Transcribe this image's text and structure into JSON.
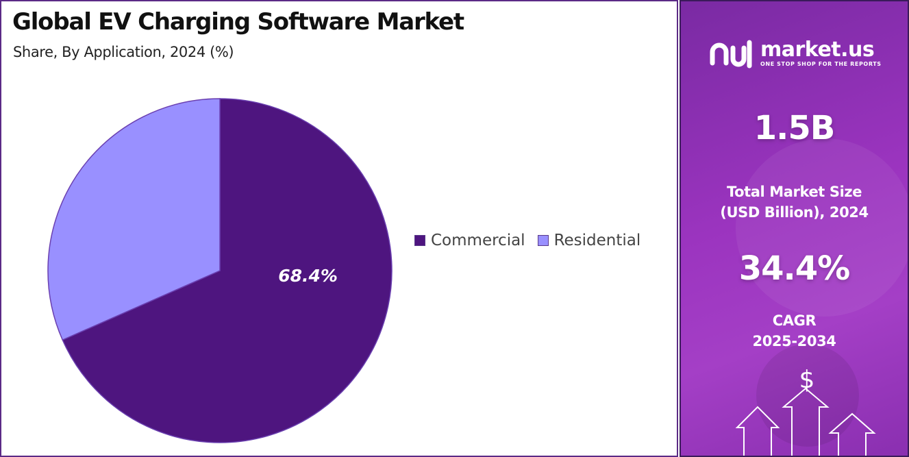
{
  "chart_data": {
    "type": "pie",
    "title": "Global EV Charging Software Market",
    "subtitle": "Share, By Application, 2024 (%)",
    "categories": [
      "Commercial",
      "Residential"
    ],
    "values": [
      68.4,
      31.6
    ],
    "labels": [
      "68.4%",
      ""
    ],
    "colors": [
      "#4e157f",
      "#9990ff"
    ],
    "legend_position": "right"
  },
  "sidebar": {
    "brand_name": "market.us",
    "brand_tagline": "ONE STOP SHOP FOR THE REPORTS",
    "market_size_value": "1.5B",
    "market_size_label_line1": "Total Market Size",
    "market_size_label_line2": "(USD Billion), 2024",
    "cagr_value": "34.4%",
    "cagr_label_line1": "CAGR",
    "cagr_label_line2": "2025-2034",
    "currency_symbol": "$",
    "icons": [
      "market-us-logo-icon",
      "growth-arrows-icon"
    ]
  }
}
